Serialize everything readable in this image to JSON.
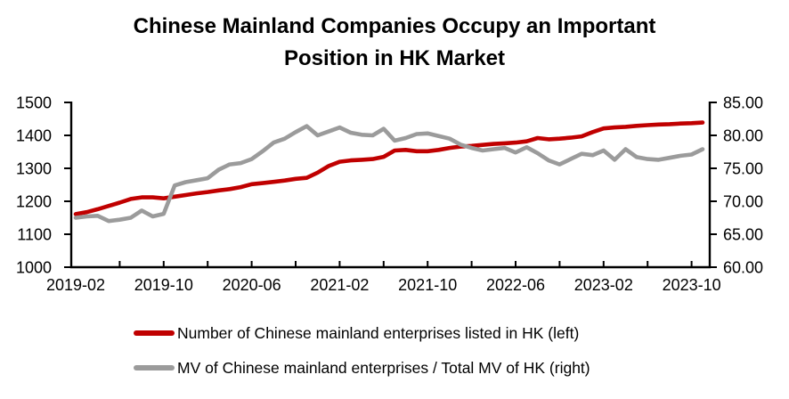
{
  "header": {
    "title_line1": "Chinese Mainland Companies Occupy an Important",
    "title_line2": "Position in HK Market"
  },
  "colors": {
    "series_red": "#C00000",
    "series_gray": "#9B9B9B",
    "axis": "#000000",
    "background": "#FFFFFF"
  },
  "chart_data": {
    "type": "line",
    "title": "Chinese Mainland Companies Occupy an Important Position in HK Market",
    "grid": false,
    "legend_position": "bottom",
    "x": [
      "2019-02",
      "2019-03",
      "2019-04",
      "2019-05",
      "2019-06",
      "2019-07",
      "2019-08",
      "2019-09",
      "2019-10",
      "2019-11",
      "2019-12",
      "2020-01",
      "2020-02",
      "2020-03",
      "2020-04",
      "2020-05",
      "2020-06",
      "2020-07",
      "2020-08",
      "2020-09",
      "2020-10",
      "2020-11",
      "2020-12",
      "2021-01",
      "2021-02",
      "2021-03",
      "2021-04",
      "2021-05",
      "2021-06",
      "2021-07",
      "2021-08",
      "2021-09",
      "2021-10",
      "2021-11",
      "2021-12",
      "2022-01",
      "2022-02",
      "2022-03",
      "2022-04",
      "2022-05",
      "2022-06",
      "2022-07",
      "2022-08",
      "2022-09",
      "2022-10",
      "2022-11",
      "2022-12",
      "2023-01",
      "2023-02",
      "2023-03",
      "2023-04",
      "2023-05",
      "2023-06",
      "2023-07",
      "2023-08",
      "2023-09",
      "2023-10",
      "2023-11"
    ],
    "x_tick_labels": [
      "2019-02",
      "2019-10",
      "2020-06",
      "2021-02",
      "2021-10",
      "2022-06",
      "2023-02",
      "2023-10"
    ],
    "minor_tick_every_months": 4,
    "left_axis": {
      "min": 1000,
      "max": 1500,
      "tick_step": 100,
      "decimals": 0
    },
    "right_axis": {
      "min": 60,
      "max": 85,
      "tick_step": 5,
      "decimals": 2
    },
    "series": [
      {
        "name": "Number of Chinese mainland enterprises listed in HK (left)",
        "axis": "left",
        "color": "#C00000",
        "values": [
          1161,
          1167,
          1176,
          1186,
          1196,
          1207,
          1212,
          1212,
          1209,
          1214,
          1219,
          1224,
          1228,
          1233,
          1237,
          1243,
          1252,
          1255,
          1259,
          1263,
          1268,
          1271,
          1287,
          1307,
          1320,
          1324,
          1326,
          1328,
          1335,
          1354,
          1356,
          1352,
          1352,
          1356,
          1362,
          1366,
          1368,
          1371,
          1374,
          1376,
          1378,
          1382,
          1392,
          1388,
          1390,
          1393,
          1397,
          1410,
          1421,
          1424,
          1426,
          1429,
          1431,
          1433,
          1434,
          1436,
          1437,
          1439
        ]
      },
      {
        "name": "MV of Chinese mainland enterprises / Total MV of HK (right)",
        "axis": "right",
        "color": "#9B9B9B",
        "values": [
          67.5,
          67.7,
          67.8,
          67.0,
          67.2,
          67.5,
          68.6,
          67.7,
          68.1,
          72.4,
          72.9,
          73.2,
          73.5,
          74.8,
          75.6,
          75.8,
          76.4,
          77.6,
          78.9,
          79.5,
          80.5,
          81.4,
          80.0,
          80.6,
          81.2,
          80.4,
          80.1,
          80.0,
          81.0,
          79.2,
          79.6,
          80.2,
          80.3,
          79.9,
          79.5,
          78.6,
          78.1,
          77.7,
          77.9,
          78.1,
          77.4,
          78.2,
          77.3,
          76.2,
          75.6,
          76.4,
          77.2,
          77.0,
          77.7,
          76.3,
          77.9,
          76.7,
          76.4,
          76.3,
          76.6,
          76.9,
          77.1,
          77.9
        ]
      }
    ]
  }
}
